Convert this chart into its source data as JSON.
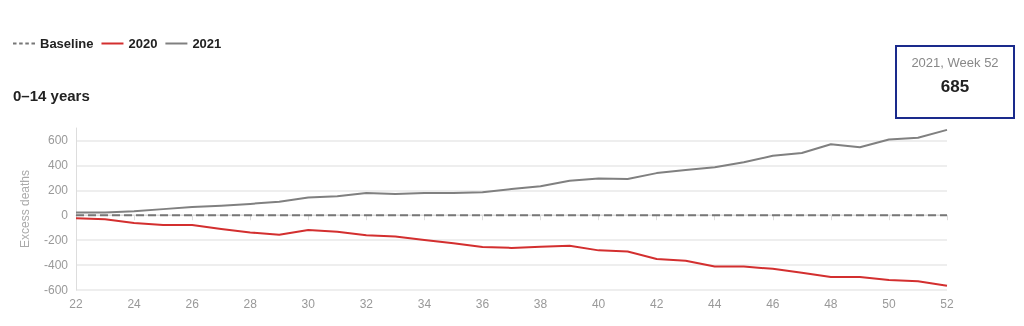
{
  "chart_data": {
    "type": "line",
    "title": "0–14 years",
    "ylabel": "Excess deaths",
    "legend": "top left",
    "grid": "y",
    "marker": "none",
    "x": [
      22,
      23,
      24,
      25,
      26,
      27,
      28,
      29,
      30,
      31,
      32,
      33,
      34,
      35,
      36,
      37,
      38,
      39,
      40,
      41,
      42,
      43,
      44,
      45,
      46,
      47,
      48,
      49,
      50,
      51,
      52
    ],
    "xlim": [
      22,
      52
    ],
    "xticks": [
      22,
      24,
      26,
      28,
      30,
      32,
      34,
      36,
      38,
      40,
      42,
      44,
      46,
      48,
      50,
      52
    ],
    "ylim": [
      -600,
      700
    ],
    "yticks": [
      -600,
      -400,
      -200,
      0,
      200,
      400,
      600
    ],
    "series": [
      {
        "name": "Baseline",
        "color": "#777777",
        "line_style": "dashed",
        "values": [
          0,
          0,
          0,
          0,
          0,
          0,
          0,
          0,
          0,
          0,
          0,
          0,
          0,
          0,
          0,
          0,
          0,
          0,
          0,
          0,
          0,
          0,
          0,
          0,
          0,
          0,
          0,
          0,
          0,
          0,
          0
        ]
      },
      {
        "name": "2020",
        "color": "#d32f2f",
        "values": [
          -25,
          -32,
          -62,
          -79,
          -79,
          -111,
          -138,
          -156,
          -119,
          -133,
          -161,
          -170,
          -198,
          -225,
          -254,
          -262,
          -252,
          -245,
          -282,
          -291,
          -351,
          -365,
          -412,
          -412,
          -430,
          -462,
          -496,
          -496,
          -519,
          -529,
          -566
        ]
      },
      {
        "name": "2021",
        "color": "#808080",
        "values": [
          22,
          22,
          32,
          49,
          67,
          77,
          91,
          109,
          143,
          153,
          178,
          170,
          178,
          178,
          185,
          210,
          232,
          277,
          294,
          291,
          338,
          363,
          385,
          425,
          477,
          499,
          570,
          546,
          607,
          622,
          685
        ]
      }
    ],
    "annotations": [
      "2021, Week 52",
      "685"
    ]
  }
}
